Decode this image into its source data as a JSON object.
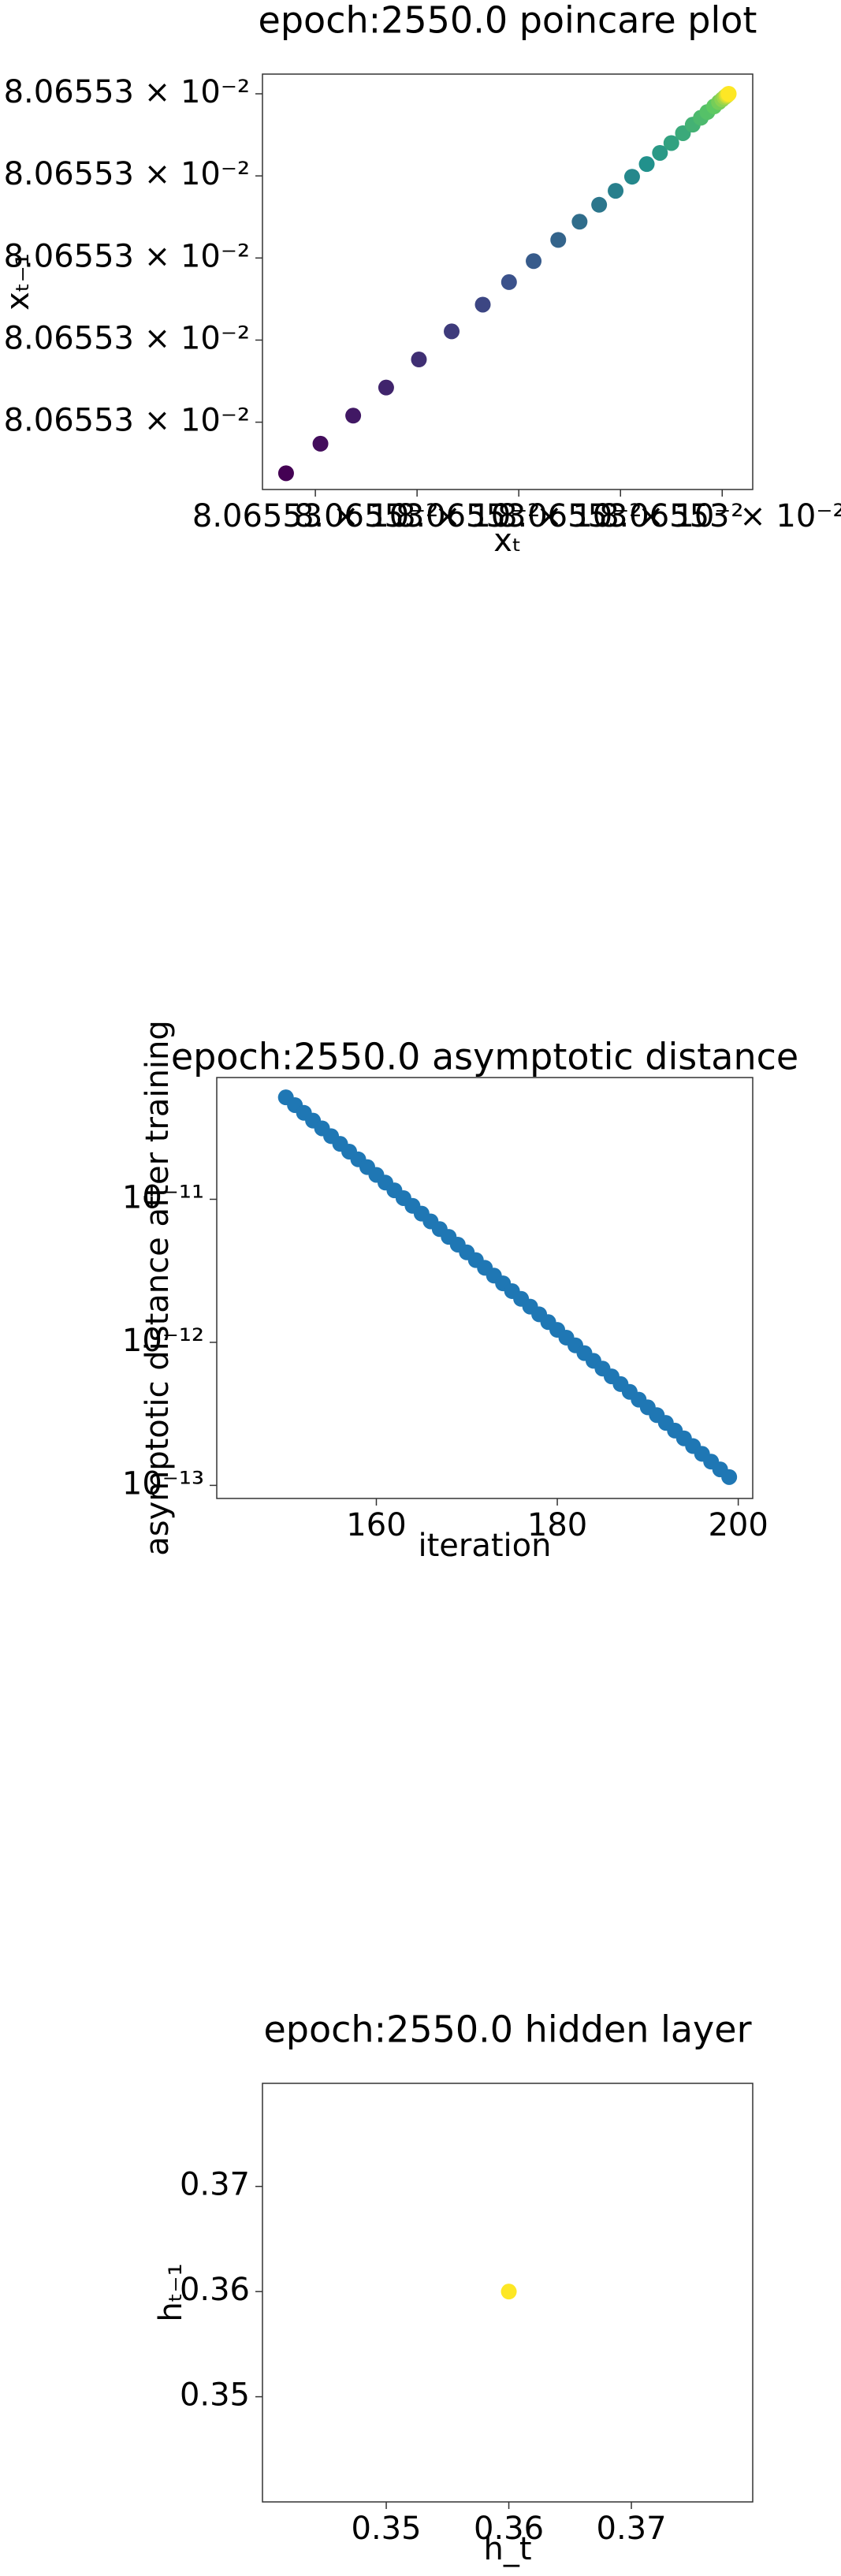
{
  "chart_data": [
    {
      "type": "scatter",
      "title": "epoch:2550.0 poincare plot",
      "x_label": "xₜ",
      "y_label": "xₜ₋₁",
      "colormap": "viridis",
      "x": [
        0.080655297856,
        0.080655298025,
        0.080655298186,
        0.080655298348,
        0.080655298509,
        0.08065529867,
        0.080655298823,
        0.080655298952,
        0.080655299073,
        0.080655299194,
        0.080655299299,
        0.080655299395,
        0.080655299476,
        0.080655299557,
        0.080655299629,
        0.080655299694,
        0.08065529975,
        0.080655299807,
        0.080655299855,
        0.080655299895,
        0.080655299927,
        0.08065529996,
        0.080655299984,
        0.0806553,
        0.080655300012,
        0.08065530002,
        0.080655300024,
        0.080655300028,
        0.080655300032
      ],
      "values": [
        0.080655297689,
        0.080655297869,
        0.08065529804,
        0.080655298211,
        0.080655298382,
        0.080655298553,
        0.080655298716,
        0.080655298853,
        0.080655298981,
        0.08065529911,
        0.080655299221,
        0.080655299324,
        0.080655299409,
        0.080655299495,
        0.080655299572,
        0.08065529964,
        0.0806552997,
        0.08065529976,
        0.080655299812,
        0.080655299854,
        0.080655299889,
        0.080655299923,
        0.080655299949,
        0.080655299966,
        0.080655299979,
        0.080655299987,
        0.080655299991,
        0.080655299996,
        0.0806553
      ],
      "xlim": [
        0.08065529774,
        0.08065530015
      ],
      "xticks": [
        {
          "value": 0.080655298,
          "label": "8.06553 × 10⁻²"
        },
        {
          "value": 0.0806552985,
          "label": "8.06553 × 10⁻²"
        },
        {
          "value": 0.080655299,
          "label": "8.06553 × 10⁻²"
        },
        {
          "value": 0.0806552995,
          "label": "8.06553 × 10⁻²"
        },
        {
          "value": 0.0806553,
          "label": "8.06553 × 10⁻²"
        }
      ],
      "ylim": [
        0.08065529759,
        0.08065530012
      ],
      "yticks": [
        {
          "value": 0.080655298,
          "label": "8.06553 × 10⁻²"
        },
        {
          "value": 0.0806552985,
          "label": "8.06553 × 10⁻²"
        },
        {
          "value": 0.080655299,
          "label": "8.06553 × 10⁻²"
        },
        {
          "value": 0.0806552995,
          "label": "8.06553 × 10⁻²"
        },
        {
          "value": 0.0806553,
          "label": "8.06553 × 10⁻²"
        }
      ]
    },
    {
      "type": "scatter",
      "title": "epoch:2550.0 asymptotic distance",
      "x_label": "iteration",
      "y_label": "asymptotic distance after training",
      "color": "#1f77b4",
      "yscale": "log",
      "x": [
        150,
        151,
        152,
        153,
        154,
        155,
        156,
        157,
        158,
        159,
        160,
        161,
        162,
        163,
        164,
        165,
        166,
        167,
        168,
        169,
        170,
        171,
        172,
        173,
        174,
        175,
        176,
        177,
        178,
        179,
        180,
        181,
        182,
        183,
        184,
        185,
        186,
        187,
        188,
        189,
        190,
        191,
        192,
        193,
        194,
        195,
        196,
        197,
        198,
        199
      ],
      "values": [
        5.16e-11,
        4.555e-11,
        4.021e-11,
        3.549e-11,
        3.133e-11,
        2.765e-11,
        2.441e-11,
        2.155e-11,
        1.902e-11,
        1.679e-11,
        1.482e-11,
        1.308e-11,
        1.155e-11,
        1.019e-11,
        8.998e-12,
        7.943e-12,
        7.011e-12,
        6.189e-12,
        5.463e-12,
        4.822e-12,
        4.257e-12,
        3.757e-12,
        3.317e-12,
        2.928e-12,
        2.584e-12,
        2.281e-12,
        2.014e-12,
        1.778e-12,
        1.569e-12,
        1.385e-12,
        1.223e-12,
        1.079e-12,
        9.527e-13,
        8.41e-13,
        7.423e-13,
        6.553e-13,
        5.784e-13,
        5.106e-13,
        4.507e-13,
        3.978e-13,
        3.512e-13,
        3.1e-13,
        2.736e-13,
        2.415e-13,
        2.132e-13,
        1.882e-13,
        1.661e-13,
        1.466e-13,
        1.294e-13,
        1.143e-13
      ],
      "xlim": [
        142.36,
        201.6
      ],
      "xticks": [
        160,
        180,
        200
      ],
      "ylim": [
        8.1e-14,
        7.1e-11
      ],
      "yticks": [
        {
          "value": 1e-11,
          "label": "10⁻¹¹"
        },
        {
          "value": 1e-12,
          "label": "10⁻¹²"
        },
        {
          "value": 1e-13,
          "label": "10⁻¹³"
        }
      ]
    },
    {
      "type": "scatter",
      "title": "epoch:2550.0 hidden layer",
      "x_label": "h_t",
      "y_label": "hₜ₋₁",
      "color": "#fde725",
      "x": [
        0.36
      ],
      "values": [
        0.36
      ],
      "xlim": [
        0.3399,
        0.3799
      ],
      "xticks": [
        0.35,
        0.36,
        0.37
      ],
      "ylim": [
        0.34,
        0.3798
      ],
      "yticks": [
        0.35,
        0.36,
        0.37
      ]
    }
  ]
}
